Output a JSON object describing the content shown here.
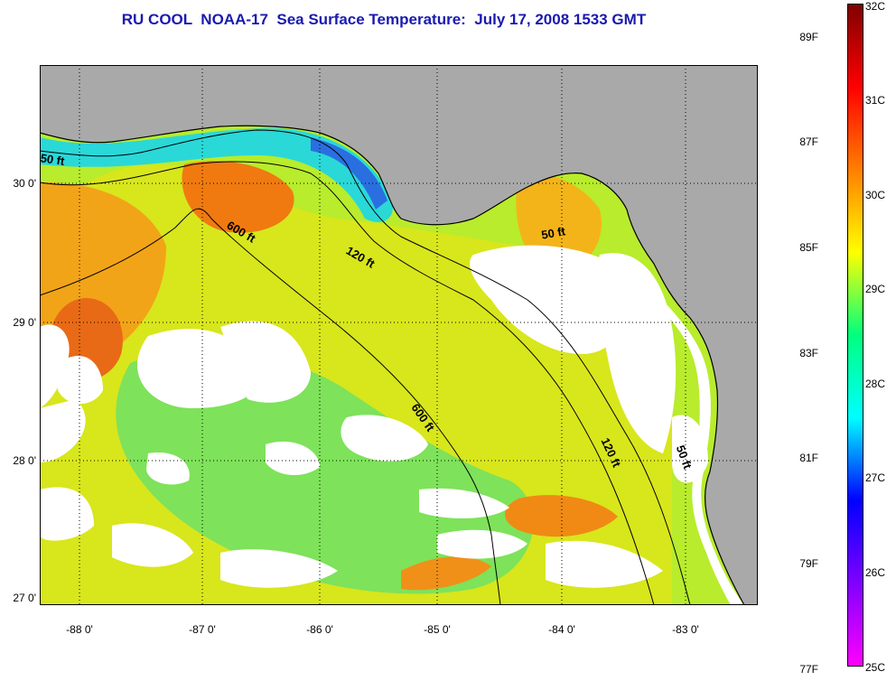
{
  "title": "RU COOL  NOAA-17  Sea Surface Temperature:  July 17, 2008 1533 GMT",
  "map": {
    "lat_ticks": [
      "30 0'",
      "29 0'",
      "28 0'",
      "27 0'"
    ],
    "lon_ticks": [
      "-88 0'",
      "-87 0'",
      "-86 0'",
      "-85 0'",
      "-84 0'",
      "-83 0'"
    ],
    "contours": [
      {
        "label": "50 ft"
      },
      {
        "label": "600 ft"
      },
      {
        "label": "120 ft"
      },
      {
        "label": "50 ft"
      },
      {
        "label": "600 ft"
      },
      {
        "label": "120 ft"
      },
      {
        "label": "50 ft"
      }
    ],
    "colors": {
      "land": "#a9a9a9",
      "cloud": "#ffffff",
      "frame": "#000000"
    }
  },
  "colorbar": {
    "fahrenheit": [
      "89F",
      "87F",
      "85F",
      "83F",
      "81F",
      "79F",
      "77F"
    ],
    "celsius": [
      "32C",
      "31C",
      "30C",
      "29C",
      "28C",
      "27C",
      "26C",
      "25C"
    ],
    "stops": [
      "#800000",
      "#ff0000",
      "#ff7f00",
      "#ffff00",
      "#00ff7f",
      "#00ffff",
      "#0000ff",
      "#8000ff",
      "#ff00ff"
    ]
  }
}
